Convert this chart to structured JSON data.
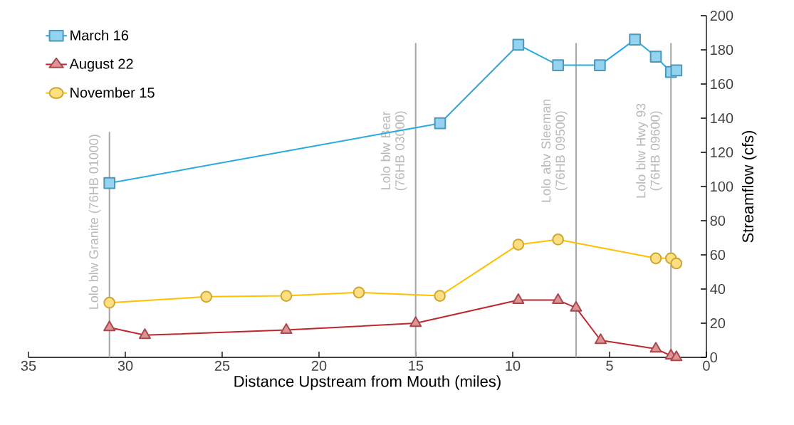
{
  "chart_data": {
    "type": "line",
    "xlabel": "Distance Upstream from Mouth (miles)",
    "ylabel": "Streamflow (cfs)",
    "xlim": [
      35,
      0
    ],
    "xticks": [
      35,
      30,
      25,
      20,
      15,
      10,
      5,
      0
    ],
    "ylim": [
      0,
      200
    ],
    "yticks": [
      0,
      20,
      40,
      60,
      80,
      100,
      120,
      140,
      160,
      180,
      200
    ],
    "legend": "top left",
    "grid": false,
    "line_style": "solid",
    "series": [
      {
        "name": "March 16",
        "color": "#29a9e1",
        "marker": "square",
        "x": [
          30.82,
          13.75,
          9.71,
          7.66,
          5.5,
          3.69,
          2.61,
          1.83,
          1.55
        ],
        "values": [
          102,
          137,
          183,
          171,
          171,
          186,
          176,
          167,
          168
        ]
      },
      {
        "name": "August 22",
        "color": "#c0272d",
        "marker": "triangle",
        "x": [
          30.82,
          28.99,
          21.69,
          15.01,
          9.71,
          7.66,
          6.73,
          5.46,
          2.61,
          1.83,
          1.55
        ],
        "values": [
          17.5,
          13,
          16,
          20,
          33.5,
          33.5,
          29,
          10,
          5,
          1,
          0
        ]
      },
      {
        "name": "November 15",
        "color": "#ffc000",
        "marker": "circle",
        "x": [
          30.82,
          25.82,
          21.69,
          17.94,
          13.76,
          9.71,
          7.66,
          2.61,
          1.83,
          1.55
        ],
        "values": [
          32,
          35.5,
          36,
          38,
          36,
          66,
          69,
          58,
          58,
          55
        ]
      }
    ],
    "ref_lines": [
      {
        "axis": "x",
        "value": 30.82,
        "label": "Lolo blw Granite (76HB 01000)",
        "color": "#a6a6a6"
      },
      {
        "axis": "x",
        "value": 15.01,
        "label": "Lolo blw Bear (76HB 03000)",
        "color": "#a6a6a6"
      },
      {
        "axis": "x",
        "value": 6.73,
        "label": "Lolo abv Sleeman (76HB 09500)",
        "color": "#a6a6a6"
      },
      {
        "axis": "x",
        "value": 1.83,
        "label": "Lolo blw Hwy 93 (76HB 09600)",
        "color": "#a6a6a6"
      }
    ]
  }
}
